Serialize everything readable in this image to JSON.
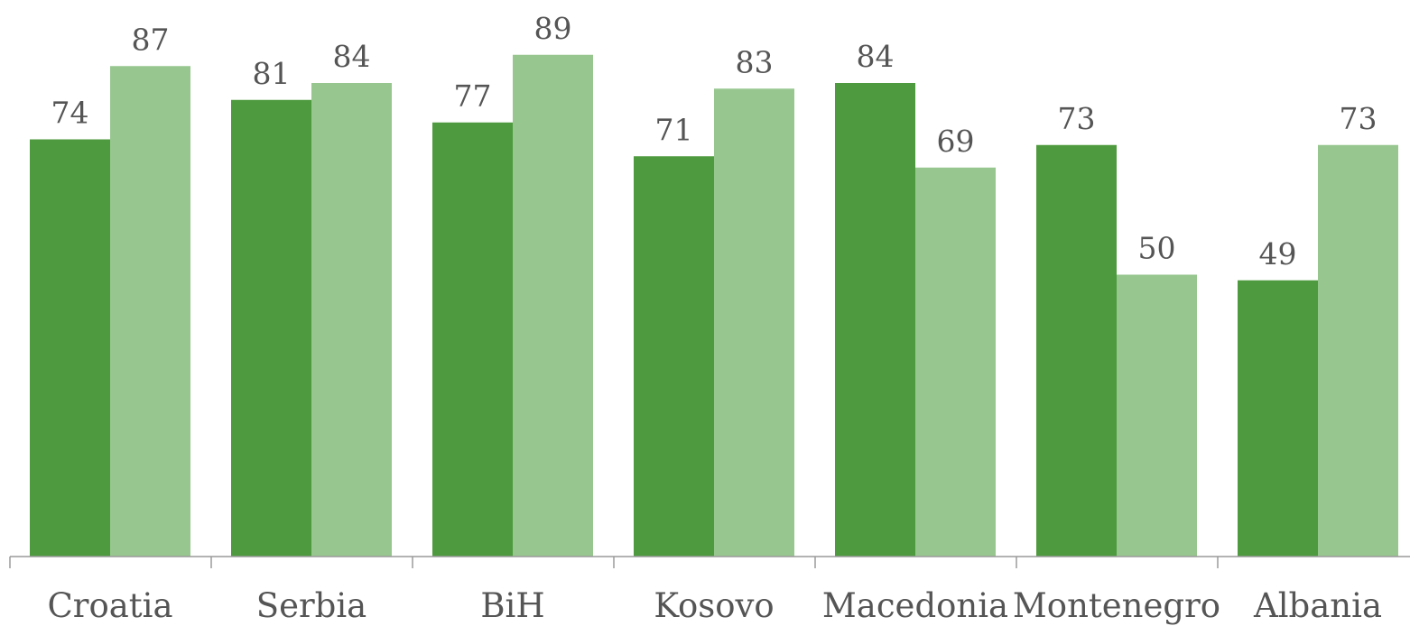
{
  "chart_data": {
    "type": "bar",
    "title": "",
    "xlabel": "",
    "ylabel": "",
    "categories": [
      "Croatia",
      "Serbia",
      "BiH",
      "Kosovo",
      "Macedonia",
      "Montenegro",
      "Albania"
    ],
    "series": [
      {
        "values": [
          74,
          81,
          77,
          71,
          84,
          73,
          49
        ],
        "color": "#4e9a3e"
      },
      {
        "values": [
          87,
          84,
          89,
          83,
          69,
          50,
          73
        ],
        "color": "#97c78f"
      }
    ],
    "ylim": [
      0,
      100
    ],
    "grid": false,
    "legend": "none",
    "data_labels": true
  }
}
